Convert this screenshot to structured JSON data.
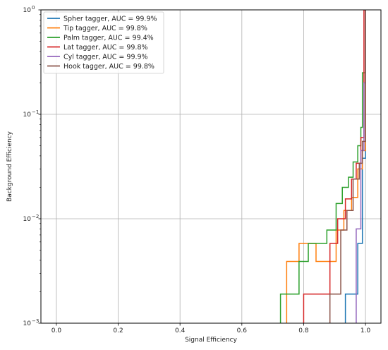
{
  "chart_data": {
    "type": "line",
    "title": "",
    "xlabel": "Signal Efficiency",
    "ylabel": "Background Efficiency",
    "xlim": [
      -0.05,
      1.05
    ],
    "ylim": [
      0.001,
      1
    ],
    "yscale": "log",
    "grid": true,
    "legend_position": "top-left",
    "x_ticks": [
      0.0,
      0.2,
      0.4,
      0.6,
      0.8,
      1.0
    ],
    "x_tick_labels": [
      "0.0",
      "0.2",
      "0.4",
      "0.6",
      "0.8",
      "1.0"
    ],
    "y_ticks": [
      0.001,
      0.01,
      0.1,
      1
    ],
    "y_tick_labels": [
      {
        "base": "10",
        "exp": "−3"
      },
      {
        "base": "10",
        "exp": "−2"
      },
      {
        "base": "10",
        "exp": "−1"
      },
      {
        "base": "10",
        "exp": "0"
      }
    ],
    "series": [
      {
        "name": "Spher tagger, AUC = 99.9%",
        "color": "#1f77b4",
        "x": [
          0.935,
          0.935,
          0.975,
          0.975,
          0.99,
          0.99,
          1.0,
          1.0
        ],
        "y": [
          0.001,
          0.0019,
          0.0019,
          0.0058,
          0.0058,
          0.038,
          0.038,
          1.0
        ]
      },
      {
        "name": "Tip tagger, AUC = 99.8%",
        "color": "#ff7f0e",
        "x": [
          0.745,
          0.745,
          0.785,
          0.785,
          0.84,
          0.84,
          0.905,
          0.905,
          0.93,
          0.93,
          0.955,
          0.955,
          0.975,
          0.975,
          0.99,
          0.99,
          1.0,
          1.0
        ],
        "y": [
          0.001,
          0.0039,
          0.0039,
          0.0058,
          0.0058,
          0.0039,
          0.0039,
          0.0078,
          0.0078,
          0.012,
          0.012,
          0.016,
          0.016,
          0.03,
          0.03,
          0.045,
          0.045,
          1.0
        ]
      },
      {
        "name": "Palm tagger, AUC = 99.4%",
        "color": "#2ca02c",
        "x": [
          0.725,
          0.725,
          0.785,
          0.785,
          0.815,
          0.815,
          0.875,
          0.875,
          0.905,
          0.905,
          0.925,
          0.925,
          0.945,
          0.945,
          0.96,
          0.96,
          0.975,
          0.975,
          0.985,
          0.985,
          0.99,
          0.99,
          1.0,
          1.0
        ],
        "y": [
          0.001,
          0.0019,
          0.0019,
          0.0039,
          0.0039,
          0.0058,
          0.0058,
          0.0078,
          0.0078,
          0.014,
          0.014,
          0.02,
          0.02,
          0.025,
          0.025,
          0.035,
          0.035,
          0.05,
          0.05,
          0.075,
          0.075,
          0.25,
          0.25,
          1.0
        ]
      },
      {
        "name": "Lat tagger, AUC = 99.8%",
        "color": "#d62728",
        "x": [
          0.8,
          0.8,
          0.885,
          0.885,
          0.91,
          0.91,
          0.935,
          0.935,
          0.955,
          0.955,
          0.97,
          0.97,
          0.985,
          0.985,
          0.995,
          0.995,
          1.0
        ],
        "y": [
          0.001,
          0.0019,
          0.0019,
          0.0058,
          0.0058,
          0.01,
          0.01,
          0.0155,
          0.0155,
          0.024,
          0.024,
          0.034,
          0.034,
          0.06,
          0.06,
          1.0,
          1.0
        ]
      },
      {
        "name": "Cyl tagger, AUC = 99.9%",
        "color": "#9467bd",
        "x": [
          0.97,
          0.97,
          0.985,
          0.985,
          0.995,
          0.995,
          1.0,
          1.0
        ],
        "y": [
          0.001,
          0.008,
          0.008,
          0.045,
          0.045,
          0.2,
          0.2,
          1.0
        ]
      },
      {
        "name": "Hook tagger, AUC = 99.8%",
        "color": "#8c564b",
        "x": [
          0.885,
          0.885,
          0.92,
          0.92,
          0.94,
          0.94,
          0.96,
          0.96,
          0.98,
          0.98,
          0.99,
          0.99,
          1.0,
          1.0
        ],
        "y": [
          0.001,
          0.0019,
          0.0019,
          0.0078,
          0.0078,
          0.012,
          0.012,
          0.024,
          0.024,
          0.034,
          0.034,
          0.055,
          0.055,
          1.0
        ]
      }
    ]
  }
}
